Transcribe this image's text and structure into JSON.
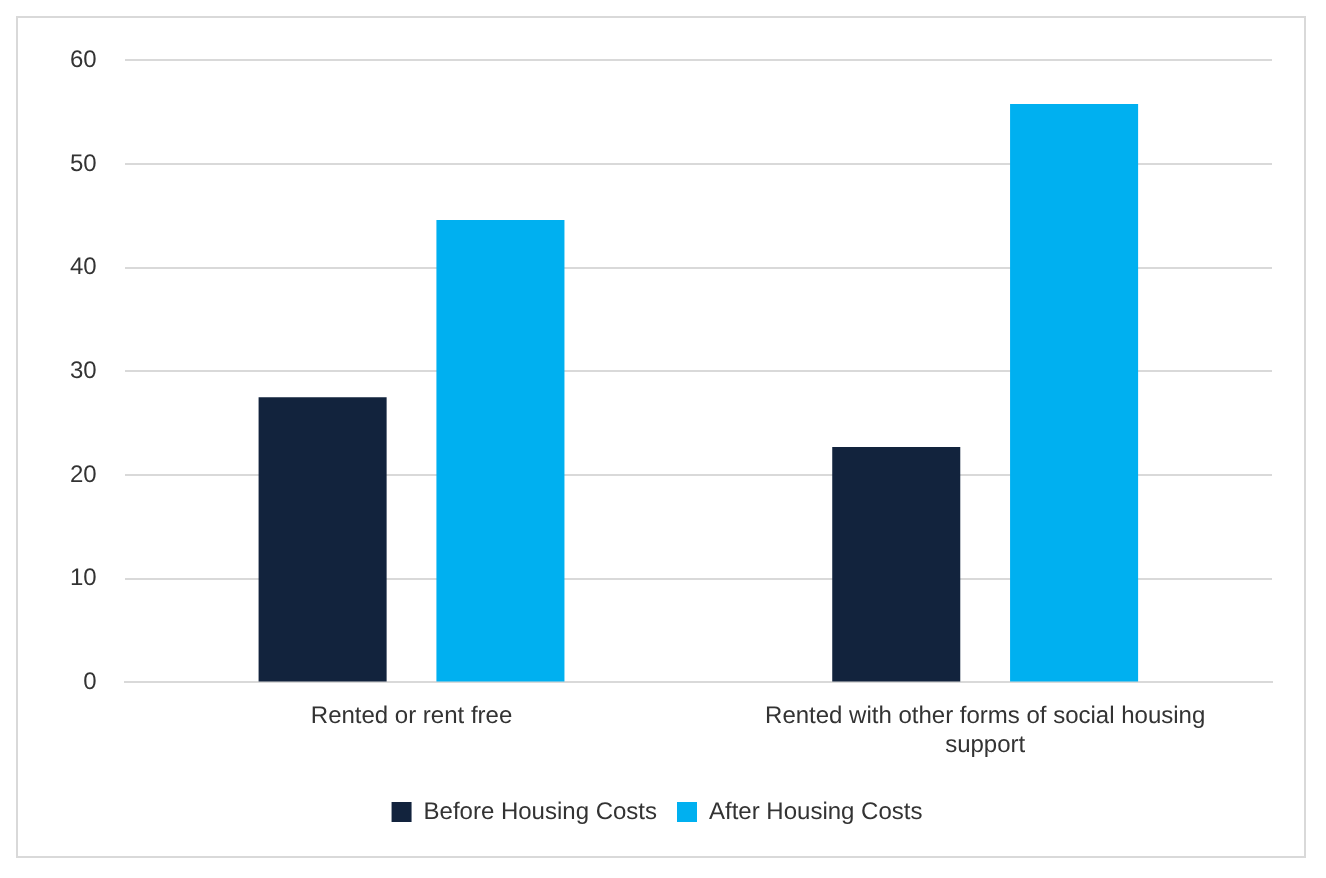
{
  "chart_data": {
    "type": "bar",
    "categories": [
      "Rented or rent free",
      "Rented with other forms of social housing support"
    ],
    "series": [
      {
        "name": "Before Housing Costs",
        "color": "#12233d",
        "values": [
          27.5,
          22.7
        ]
      },
      {
        "name": "After Housing Costs",
        "color": "#00b0f0",
        "values": [
          44.6,
          55.8
        ]
      }
    ],
    "ylim": [
      0,
      60
    ],
    "yticks": [
      0,
      10,
      20,
      30,
      40,
      50,
      60
    ],
    "grid": "y",
    "legend": "bottom"
  }
}
